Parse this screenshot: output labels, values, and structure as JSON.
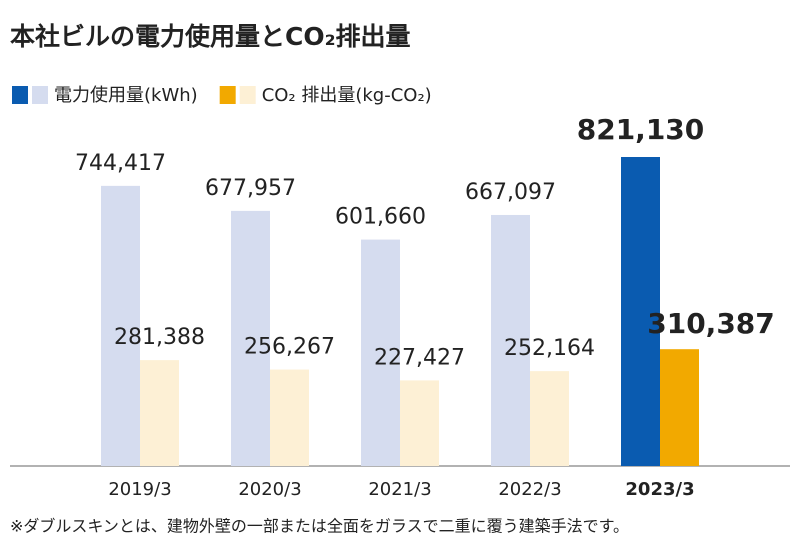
{
  "chart_data": {
    "type": "bar",
    "title": "本社ビルの電力使用量とCO₂排出量",
    "categories": [
      "2019/3",
      "2020/3",
      "2021/3",
      "2022/3",
      "2023/3"
    ],
    "highlight": 4,
    "series": [
      {
        "name": "電力使用量(kWh)",
        "color": "#d5dcef",
        "highlight_color": "#0a5bb0",
        "values": [
          744417,
          677957,
          601660,
          667097,
          821130
        ],
        "value_labels": [
          "744,417",
          "677,957",
          "601,660",
          "667,097",
          "821,130"
        ]
      },
      {
        "name": "CO₂ 排出量(kg-CO₂)",
        "color": "#fdf0d5",
        "highlight_color": "#f2a900",
        "values": [
          281388,
          256267,
          227427,
          252164,
          310387
        ],
        "value_labels": [
          "281,388",
          "256,267",
          "227,427",
          "252,164",
          "310,387"
        ]
      }
    ],
    "note": "※ダブルスキンとは、建物外壁の一部または全面をガラスで二重に覆う建築手法です。"
  }
}
